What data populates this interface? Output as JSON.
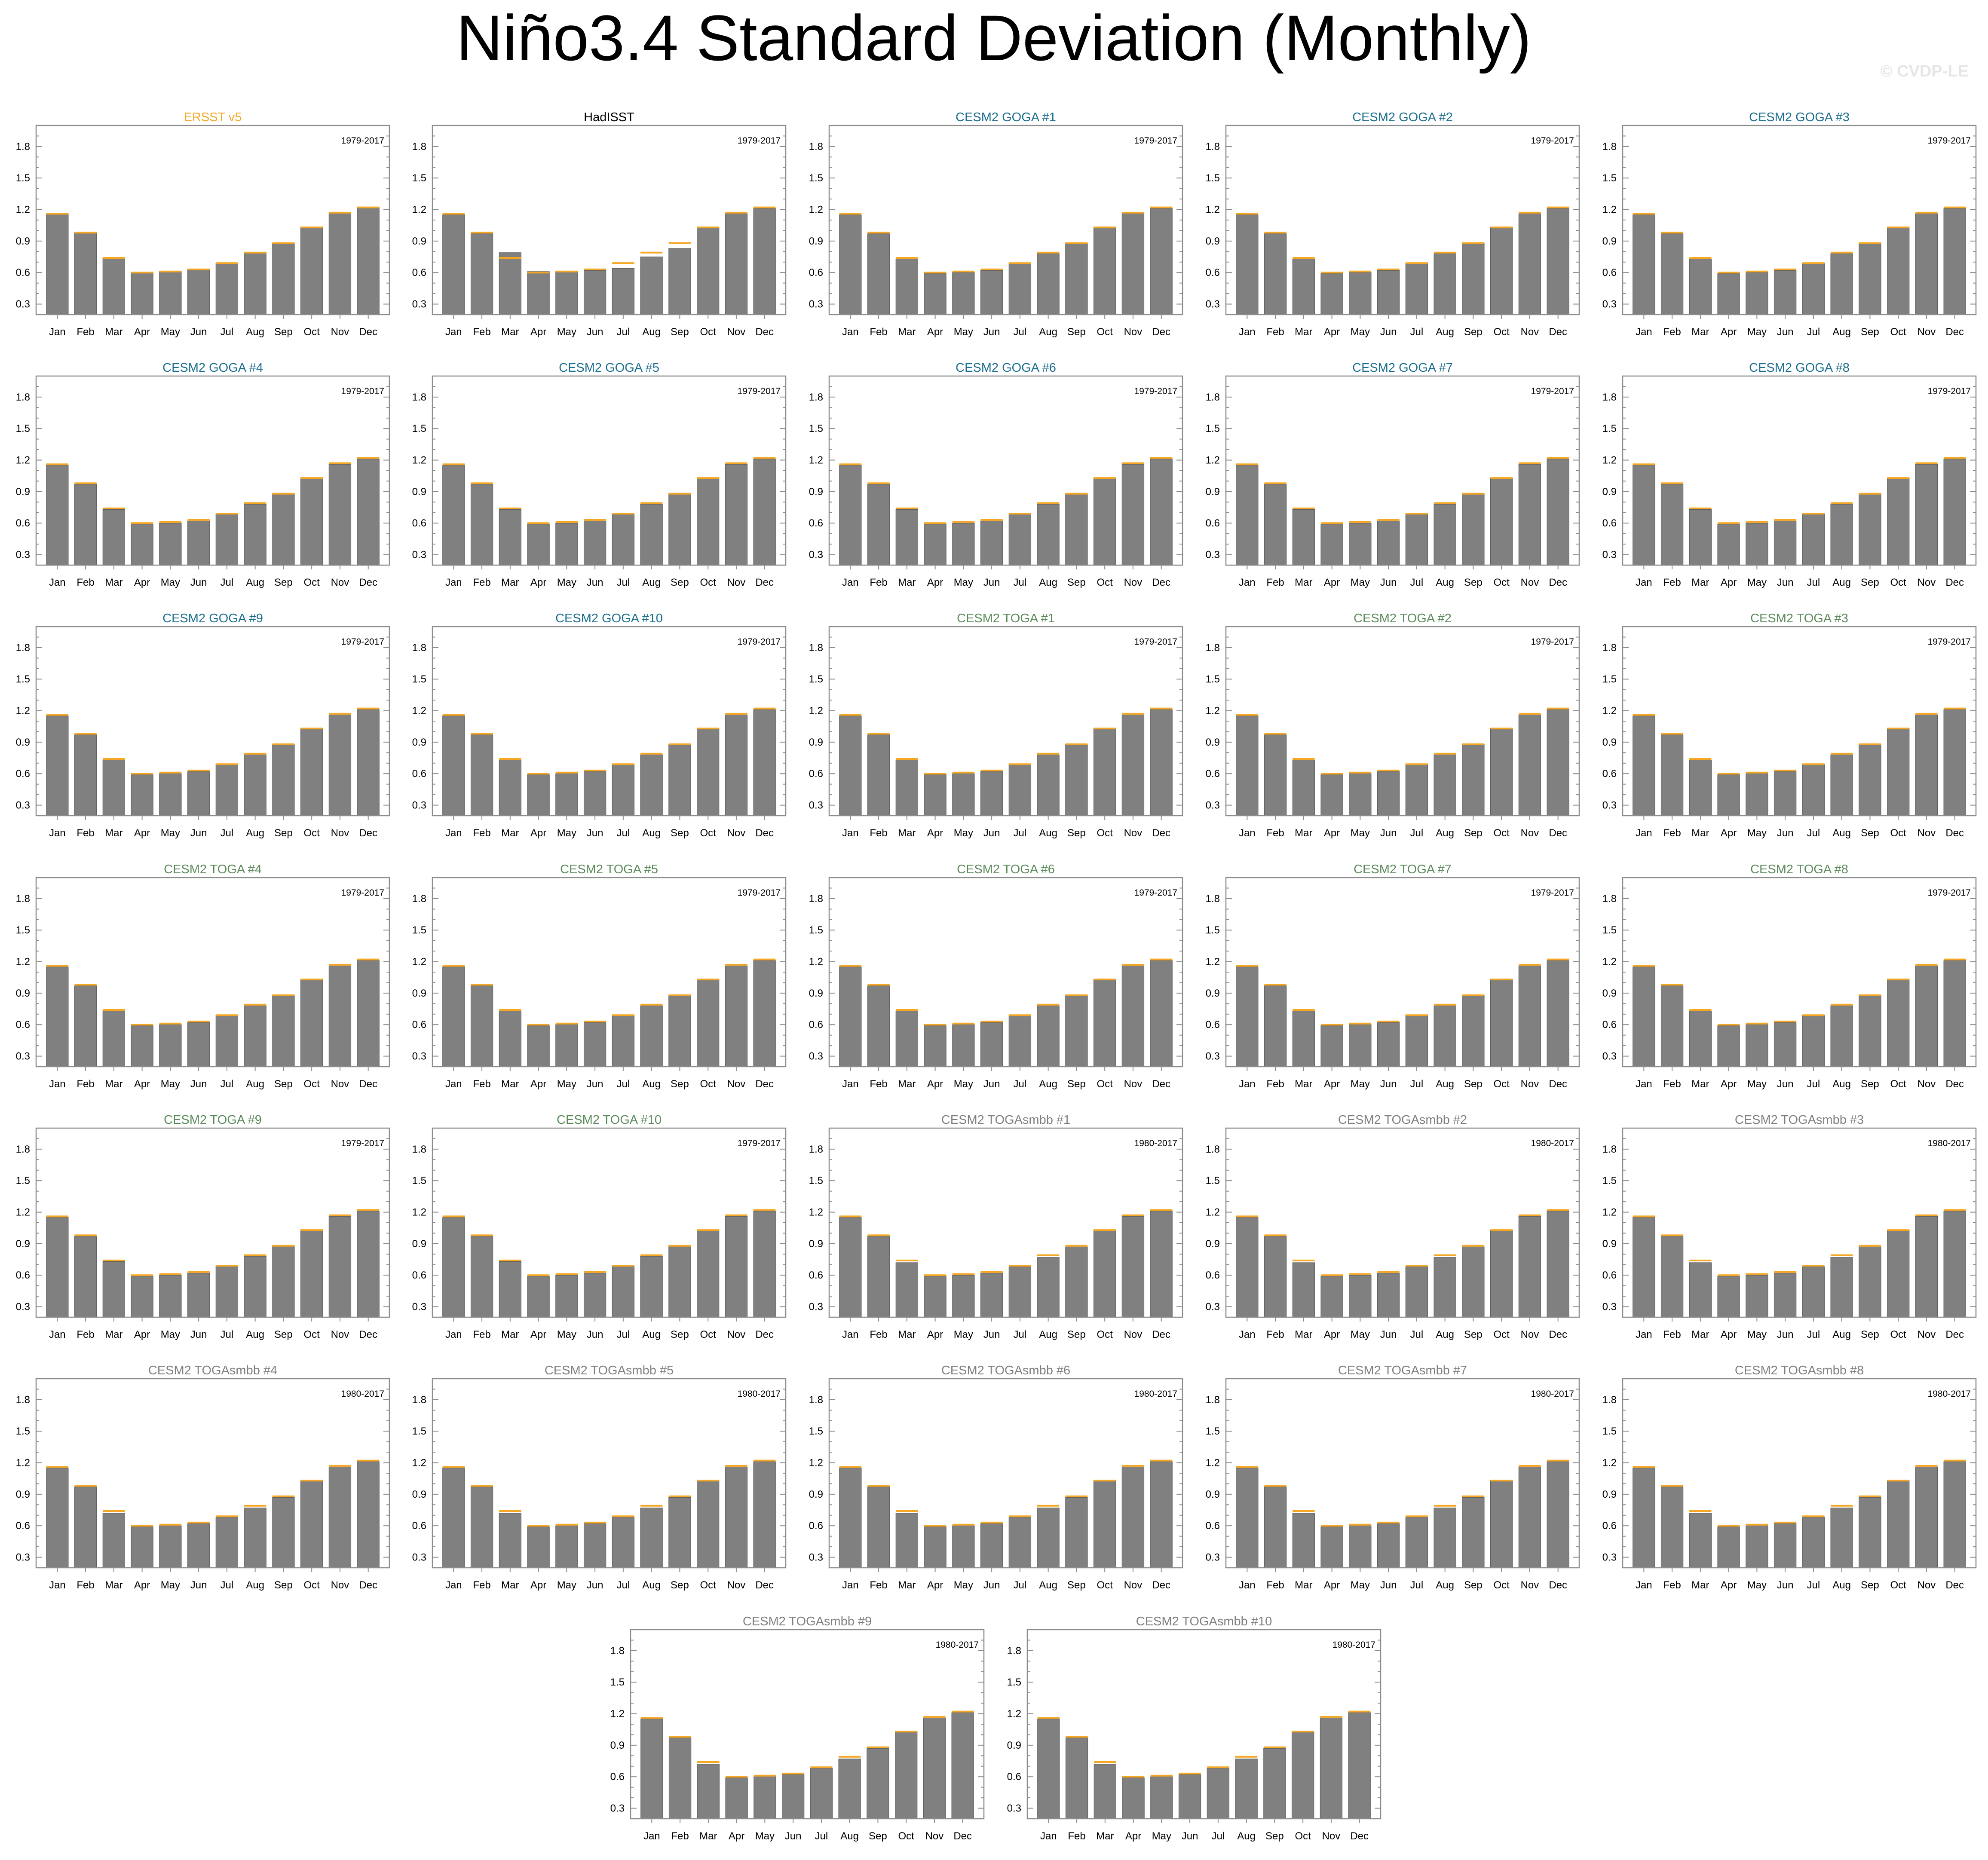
{
  "figure": {
    "title": "Niño3.4 Standard Deviation (Monthly)",
    "watermark": "© CVDP-LE"
  },
  "colors": {
    "bar_fill": "#808080",
    "bar_edge": "#5a5a5a",
    "reference_line": "#f5a623",
    "title_observed_ersst": "#f5a623",
    "title_observed_hadisst": "#000000",
    "title_goga": "#1a6e8e",
    "title_toga": "#5a8a5a",
    "title_togasmbb": "#7f7f7f"
  },
  "chart_data": {
    "type": "bar",
    "categories": [
      "Jan",
      "Feb",
      "Mar",
      "Apr",
      "May",
      "Jun",
      "Jul",
      "Aug",
      "Sep",
      "Oct",
      "Nov",
      "Dec"
    ],
    "ylim": [
      0.2,
      2.0
    ],
    "yticks": [
      0.3,
      0.6,
      0.9,
      1.2,
      1.5,
      1.8
    ],
    "ytick_labels": [
      "0.3",
      "0.6",
      "0.9",
      "1.2",
      "1.5",
      "1.8"
    ],
    "grid": false,
    "reference_series": {
      "values": [
        1.16,
        0.98,
        0.74,
        0.6,
        0.61,
        0.63,
        0.69,
        0.79,
        0.88,
        1.03,
        1.17,
        1.22
      ]
    },
    "panels": [
      {
        "title": "ERSST v5",
        "group": "observed_ersst",
        "period": "1979-2017",
        "values": [
          1.16,
          0.98,
          0.74,
          0.6,
          0.61,
          0.63,
          0.69,
          0.79,
          0.88,
          1.03,
          1.17,
          1.22
        ]
      },
      {
        "title": "HadISST",
        "group": "observed_hadisst",
        "period": "1979-2017",
        "values": [
          1.15,
          0.97,
          0.79,
          0.61,
          0.61,
          0.62,
          0.64,
          0.75,
          0.83,
          1.03,
          1.16,
          1.21
        ]
      },
      {
        "title": "CESM2 GOGA #1",
        "group": "goga",
        "period": "1979-2017",
        "values": [
          1.15,
          0.97,
          0.73,
          0.59,
          0.6,
          0.62,
          0.69,
          0.78,
          0.88,
          1.03,
          1.16,
          1.21
        ]
      },
      {
        "title": "CESM2 GOGA #2",
        "group": "goga",
        "period": "1979-2017",
        "values": [
          1.15,
          0.97,
          0.73,
          0.59,
          0.6,
          0.62,
          0.69,
          0.78,
          0.88,
          1.03,
          1.16,
          1.21
        ]
      },
      {
        "title": "CESM2 GOGA #3",
        "group": "goga",
        "period": "1979-2017",
        "values": [
          1.15,
          0.97,
          0.73,
          0.59,
          0.6,
          0.62,
          0.69,
          0.78,
          0.88,
          1.03,
          1.16,
          1.21
        ]
      },
      {
        "title": "CESM2 GOGA #4",
        "group": "goga",
        "period": "1979-2017",
        "values": [
          1.15,
          0.97,
          0.73,
          0.59,
          0.6,
          0.62,
          0.69,
          0.78,
          0.88,
          1.03,
          1.16,
          1.21
        ]
      },
      {
        "title": "CESM2 GOGA #5",
        "group": "goga",
        "period": "1979-2017",
        "values": [
          1.15,
          0.97,
          0.73,
          0.59,
          0.6,
          0.62,
          0.69,
          0.78,
          0.88,
          1.03,
          1.16,
          1.21
        ]
      },
      {
        "title": "CESM2 GOGA #6",
        "group": "goga",
        "period": "1979-2017",
        "values": [
          1.15,
          0.97,
          0.73,
          0.59,
          0.6,
          0.62,
          0.69,
          0.78,
          0.88,
          1.03,
          1.16,
          1.21
        ]
      },
      {
        "title": "CESM2 GOGA #7",
        "group": "goga",
        "period": "1979-2017",
        "values": [
          1.15,
          0.97,
          0.73,
          0.59,
          0.6,
          0.62,
          0.69,
          0.78,
          0.88,
          1.03,
          1.16,
          1.21
        ]
      },
      {
        "title": "CESM2 GOGA #8",
        "group": "goga",
        "period": "1979-2017",
        "values": [
          1.15,
          0.97,
          0.73,
          0.59,
          0.6,
          0.62,
          0.69,
          0.78,
          0.88,
          1.03,
          1.16,
          1.21
        ]
      },
      {
        "title": "CESM2 GOGA #9",
        "group": "goga",
        "period": "1979-2017",
        "values": [
          1.15,
          0.97,
          0.73,
          0.59,
          0.6,
          0.62,
          0.69,
          0.78,
          0.88,
          1.03,
          1.16,
          1.21
        ]
      },
      {
        "title": "CESM2 GOGA #10",
        "group": "goga",
        "period": "1979-2017",
        "values": [
          1.15,
          0.97,
          0.73,
          0.59,
          0.6,
          0.62,
          0.69,
          0.78,
          0.88,
          1.03,
          1.16,
          1.21
        ]
      },
      {
        "title": "CESM2 TOGA #1",
        "group": "toga",
        "period": "1979-2017",
        "values": [
          1.15,
          0.97,
          0.73,
          0.59,
          0.6,
          0.62,
          0.69,
          0.78,
          0.88,
          1.03,
          1.16,
          1.21
        ]
      },
      {
        "title": "CESM2 TOGA #2",
        "group": "toga",
        "period": "1979-2017",
        "values": [
          1.15,
          0.97,
          0.73,
          0.59,
          0.6,
          0.62,
          0.69,
          0.78,
          0.88,
          1.03,
          1.16,
          1.21
        ]
      },
      {
        "title": "CESM2 TOGA #3",
        "group": "toga",
        "period": "1979-2017",
        "values": [
          1.15,
          0.97,
          0.73,
          0.59,
          0.6,
          0.62,
          0.69,
          0.78,
          0.88,
          1.03,
          1.16,
          1.21
        ]
      },
      {
        "title": "CESM2 TOGA #4",
        "group": "toga",
        "period": "1979-2017",
        "values": [
          1.15,
          0.97,
          0.73,
          0.59,
          0.6,
          0.62,
          0.69,
          0.78,
          0.88,
          1.03,
          1.16,
          1.21
        ]
      },
      {
        "title": "CESM2 TOGA #5",
        "group": "toga",
        "period": "1979-2017",
        "values": [
          1.15,
          0.97,
          0.73,
          0.59,
          0.6,
          0.62,
          0.69,
          0.78,
          0.88,
          1.03,
          1.16,
          1.21
        ]
      },
      {
        "title": "CESM2 TOGA #6",
        "group": "toga",
        "period": "1979-2017",
        "values": [
          1.15,
          0.97,
          0.73,
          0.59,
          0.6,
          0.62,
          0.69,
          0.78,
          0.88,
          1.03,
          1.16,
          1.21
        ]
      },
      {
        "title": "CESM2 TOGA #7",
        "group": "toga",
        "period": "1979-2017",
        "values": [
          1.15,
          0.97,
          0.73,
          0.59,
          0.6,
          0.62,
          0.69,
          0.78,
          0.88,
          1.03,
          1.16,
          1.21
        ]
      },
      {
        "title": "CESM2 TOGA #8",
        "group": "toga",
        "period": "1979-2017",
        "values": [
          1.15,
          0.97,
          0.73,
          0.59,
          0.6,
          0.62,
          0.69,
          0.78,
          0.88,
          1.03,
          1.16,
          1.21
        ]
      },
      {
        "title": "CESM2 TOGA #9",
        "group": "toga",
        "period": "1979-2017",
        "values": [
          1.15,
          0.97,
          0.73,
          0.59,
          0.6,
          0.62,
          0.69,
          0.78,
          0.88,
          1.03,
          1.16,
          1.21
        ]
      },
      {
        "title": "CESM2 TOGA #10",
        "group": "toga",
        "period": "1979-2017",
        "values": [
          1.15,
          0.97,
          0.73,
          0.59,
          0.6,
          0.62,
          0.69,
          0.78,
          0.88,
          1.03,
          1.16,
          1.21
        ]
      },
      {
        "title": "CESM2 TOGAsmbb #1",
        "group": "togasmbb",
        "period": "1980-2017",
        "values": [
          1.15,
          0.97,
          0.72,
          0.59,
          0.6,
          0.62,
          0.68,
          0.77,
          0.87,
          1.03,
          1.16,
          1.21
        ]
      },
      {
        "title": "CESM2 TOGAsmbb #2",
        "group": "togasmbb",
        "period": "1980-2017",
        "values": [
          1.15,
          0.97,
          0.72,
          0.59,
          0.6,
          0.62,
          0.68,
          0.77,
          0.87,
          1.03,
          1.16,
          1.21
        ]
      },
      {
        "title": "CESM2 TOGAsmbb #3",
        "group": "togasmbb",
        "period": "1980-2017",
        "values": [
          1.15,
          0.97,
          0.72,
          0.59,
          0.6,
          0.62,
          0.68,
          0.77,
          0.87,
          1.03,
          1.16,
          1.21
        ]
      },
      {
        "title": "CESM2 TOGAsmbb #4",
        "group": "togasmbb",
        "period": "1980-2017",
        "values": [
          1.15,
          0.97,
          0.72,
          0.59,
          0.6,
          0.62,
          0.68,
          0.77,
          0.87,
          1.03,
          1.16,
          1.21
        ]
      },
      {
        "title": "CESM2 TOGAsmbb #5",
        "group": "togasmbb",
        "period": "1980-2017",
        "values": [
          1.15,
          0.97,
          0.72,
          0.59,
          0.6,
          0.62,
          0.68,
          0.77,
          0.87,
          1.03,
          1.16,
          1.21
        ]
      },
      {
        "title": "CESM2 TOGAsmbb #6",
        "group": "togasmbb",
        "period": "1980-2017",
        "values": [
          1.15,
          0.97,
          0.72,
          0.59,
          0.6,
          0.62,
          0.68,
          0.77,
          0.87,
          1.03,
          1.16,
          1.21
        ]
      },
      {
        "title": "CESM2 TOGAsmbb #7",
        "group": "togasmbb",
        "period": "1980-2017",
        "values": [
          1.15,
          0.97,
          0.72,
          0.59,
          0.6,
          0.62,
          0.68,
          0.77,
          0.87,
          1.03,
          1.16,
          1.21
        ]
      },
      {
        "title": "CESM2 TOGAsmbb #8",
        "group": "togasmbb",
        "period": "1980-2017",
        "values": [
          1.15,
          0.97,
          0.72,
          0.59,
          0.6,
          0.62,
          0.68,
          0.77,
          0.87,
          1.03,
          1.16,
          1.21
        ]
      },
      {
        "title": "CESM2 TOGAsmbb #9",
        "group": "togasmbb",
        "period": "1980-2017",
        "values": [
          1.15,
          0.97,
          0.72,
          0.59,
          0.6,
          0.62,
          0.68,
          0.77,
          0.87,
          1.03,
          1.16,
          1.21
        ]
      },
      {
        "title": "CESM2 TOGAsmbb #10",
        "group": "togasmbb",
        "period": "1980-2017",
        "values": [
          1.15,
          0.97,
          0.72,
          0.59,
          0.6,
          0.62,
          0.68,
          0.77,
          0.87,
          1.03,
          1.16,
          1.21
        ]
      }
    ]
  }
}
